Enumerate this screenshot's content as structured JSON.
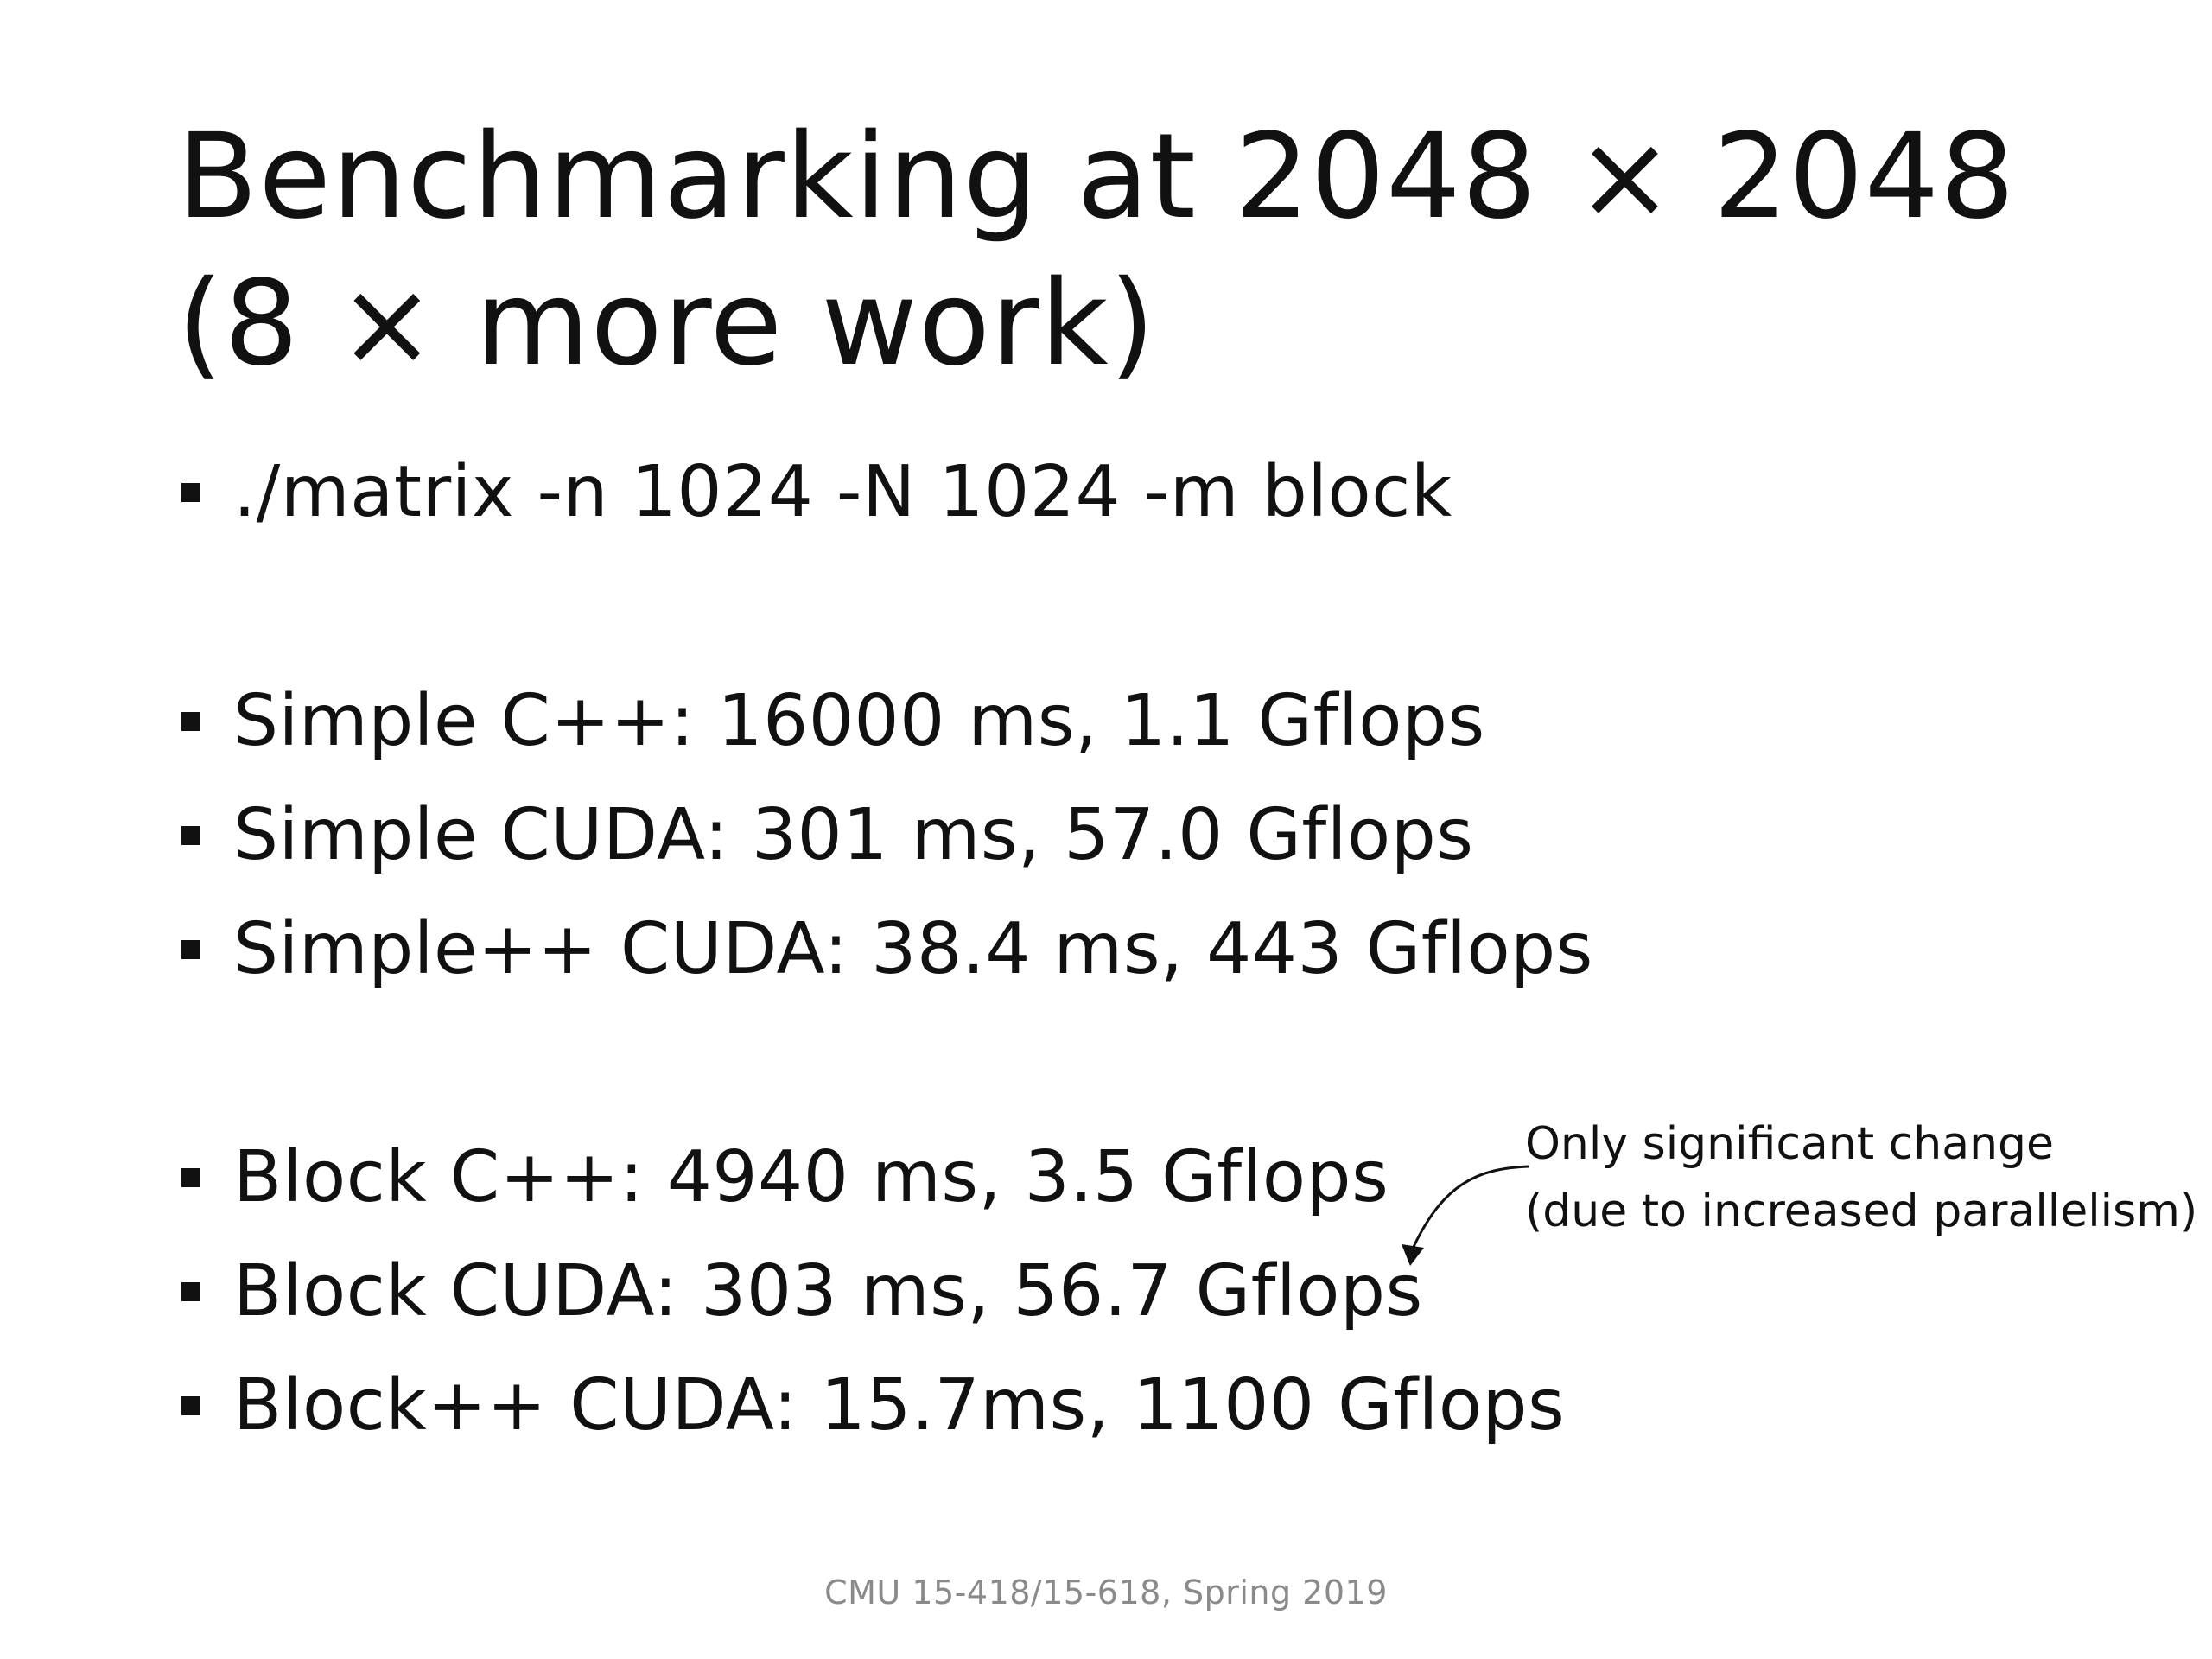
{
  "slide": {
    "title_lines": [
      "Benchmarking at 2048 × 2048",
      "(8 × more work)"
    ],
    "bullets": [
      {
        "text": "./matrix -n 1024 -N 1024 -m block"
      },
      {
        "text": "Simple C++: 16000 ms, 1.1 Gflops"
      },
      {
        "text": "Simple CUDA: 301 ms, 57.0 Gflops"
      },
      {
        "text": "Simple++ CUDA: 38.4 ms, 443 Gflops"
      },
      {
        "text": "Block C++: 4940 ms, 3.5 Gflops"
      },
      {
        "text": "Block CUDA: 303 ms, 56.7 Gflops"
      },
      {
        "text": "Block++ CUDA: 15.7ms, 1100 Gflops"
      }
    ],
    "annotation_lines": [
      "Only significant change",
      "(due to increased parallelism)"
    ],
    "footer": "CMU 15-418/15-618, Spring 2019"
  }
}
